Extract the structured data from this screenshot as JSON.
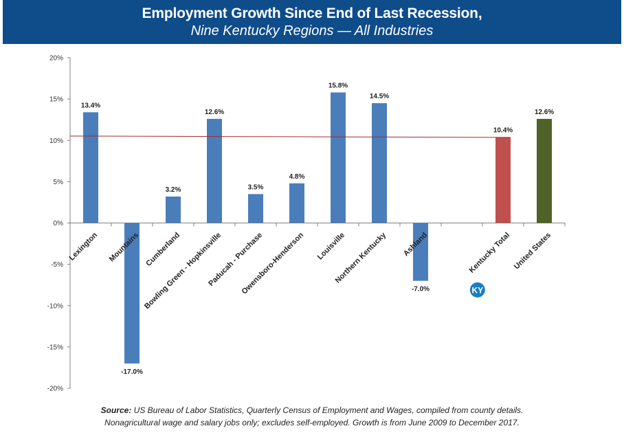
{
  "header": {
    "title": "Employment Growth Since End of Last Recession",
    "title_comma": ",",
    "subtitle": "Nine Kentucky Regions — All Industries"
  },
  "badge": {
    "label": "KY",
    "color": "#1a7fc1"
  },
  "footnote": {
    "source_label": "Source:",
    "source_text": " US Bureau of Labor Statistics, Quarterly Census of Employment and Wages, compiled from county details.",
    "line2": "Nonagricultural wage and salary jobs only; excludes self-employed. Growth is from June 2009 to December 2017."
  },
  "chart_data": {
    "type": "bar",
    "title": "Employment Growth Since End of Last Recession",
    "subtitle": "Nine Kentucky Regions — All Industries",
    "xlabel": "",
    "ylabel": "",
    "ylim": [
      -20,
      20
    ],
    "yticks": [
      -20,
      -15,
      -10,
      -5,
      0,
      5,
      10,
      15,
      20
    ],
    "ytick_labels": [
      "-20%",
      "-15%",
      "-10%",
      "-5%",
      "0%",
      "5%",
      "10%",
      "15%",
      "20%"
    ],
    "grid": false,
    "categories": [
      "Lexington",
      "Mountains",
      "Cumberland",
      "Bowling Green - Hopkinsville",
      "Paducah - Purchase",
      "Owensboro-Henderson",
      "Louisville",
      "Northern Kentucky",
      "Ashland",
      "",
      "Kentucky Total",
      "United States"
    ],
    "values": [
      13.4,
      -17.0,
      3.2,
      12.6,
      3.5,
      4.8,
      15.8,
      14.5,
      -7.0,
      null,
      10.4,
      12.6
    ],
    "value_labels": [
      "13.4%",
      "-17.0%",
      "3.2%",
      "12.6%",
      "3.5%",
      "4.8%",
      "15.8%",
      "14.5%",
      "-7.0%",
      "",
      "10.4%",
      "12.6%"
    ],
    "colors": [
      "#4a7ebb",
      "#4a7ebb",
      "#4a7ebb",
      "#4a7ebb",
      "#4a7ebb",
      "#4a7ebb",
      "#4a7ebb",
      "#4a7ebb",
      "#4a7ebb",
      "#4a7ebb",
      "#c0504d",
      "#4f6228"
    ],
    "reference_line": {
      "value": 10.4,
      "color": "#a52a2a"
    }
  }
}
